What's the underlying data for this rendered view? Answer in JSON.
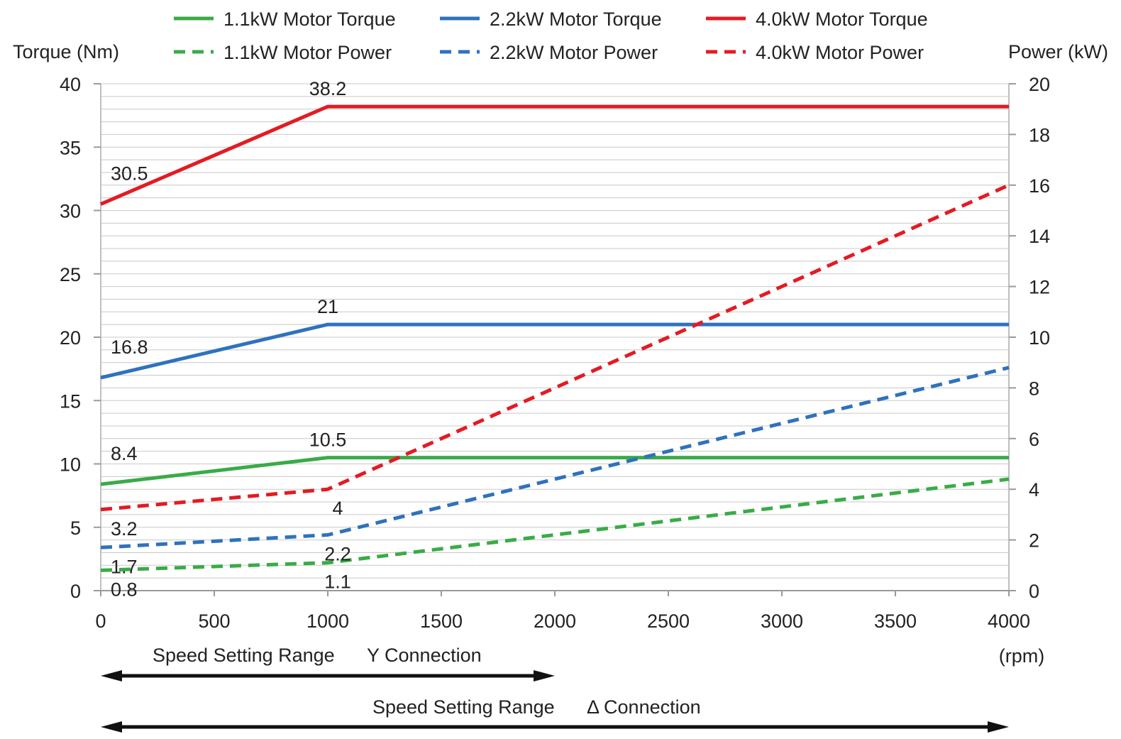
{
  "chart_data": {
    "type": "line",
    "x_unit": "(rpm)",
    "y_left_label": "Torque (Nm)",
    "y_right_label": "Power (kW)",
    "x_ticks": [
      0,
      500,
      1000,
      1500,
      2000,
      2500,
      3000,
      3500,
      4000
    ],
    "y_left_ticks": [
      0,
      5,
      10,
      15,
      20,
      25,
      30,
      35,
      40
    ],
    "y_right_ticks": [
      0,
      2,
      4,
      6,
      8,
      10,
      12,
      14,
      16,
      18,
      20
    ],
    "xlim": [
      0,
      4000
    ],
    "y_left_lim": [
      0,
      40
    ],
    "y_right_lim": [
      0,
      20
    ],
    "grid": "horizontal",
    "colors": {
      "green": "#3aab47",
      "blue": "#2f72bd",
      "red": "#e31b23"
    },
    "series": [
      {
        "name": "1.1kW Motor Torque",
        "axis": "left",
        "style": "solid",
        "color": "#3aab47",
        "x": [
          0,
          1000,
          4000
        ],
        "y": [
          8.4,
          10.5,
          10.5
        ]
      },
      {
        "name": "2.2kW Motor Torque",
        "axis": "left",
        "style": "solid",
        "color": "#2f72bd",
        "x": [
          0,
          1000,
          4000
        ],
        "y": [
          16.8,
          21,
          21
        ]
      },
      {
        "name": "4.0kW Motor Torque",
        "axis": "left",
        "style": "solid",
        "color": "#e31b23",
        "x": [
          0,
          1000,
          4000
        ],
        "y": [
          30.5,
          38.2,
          38.2
        ]
      },
      {
        "name": "1.1kW Motor Power",
        "axis": "right",
        "style": "dashed",
        "color": "#3aab47",
        "x": [
          0,
          1000,
          4000
        ],
        "y": [
          0.8,
          1.1,
          4.4
        ]
      },
      {
        "name": "2.2kW Motor Power",
        "axis": "right",
        "style": "dashed",
        "color": "#2f72bd",
        "x": [
          0,
          1000,
          4000
        ],
        "y": [
          1.7,
          2.2,
          8.8
        ]
      },
      {
        "name": "4.0kW Motor Power",
        "axis": "right",
        "style": "dashed",
        "color": "#e31b23",
        "x": [
          0,
          1000,
          4000
        ],
        "y": [
          3.2,
          4,
          16
        ]
      }
    ],
    "data_labels": [
      {
        "text": "30.5",
        "x": 0,
        "y": 30.5,
        "axis": "left",
        "pos": "above-right"
      },
      {
        "text": "38.2",
        "x": 1000,
        "y": 38.2,
        "axis": "left",
        "pos": "above"
      },
      {
        "text": "16.8",
        "x": 0,
        "y": 16.8,
        "axis": "left",
        "pos": "above-right"
      },
      {
        "text": "21",
        "x": 1000,
        "y": 21,
        "axis": "left",
        "pos": "above"
      },
      {
        "text": "8.4",
        "x": 0,
        "y": 8.4,
        "axis": "left",
        "pos": "above-right"
      },
      {
        "text": "10.5",
        "x": 1000,
        "y": 10.5,
        "axis": "left",
        "pos": "above"
      },
      {
        "text": "3.2",
        "x": 0,
        "y": 3.2,
        "axis": "right",
        "pos": "below-right"
      },
      {
        "text": "4",
        "x": 1000,
        "y": 4,
        "axis": "right",
        "pos": "below"
      },
      {
        "text": "1.7",
        "x": 0,
        "y": 1.7,
        "axis": "right",
        "pos": "below-right"
      },
      {
        "text": "2.2",
        "x": 1000,
        "y": 2.2,
        "axis": "right",
        "pos": "below"
      },
      {
        "text": "0.8",
        "x": 0,
        "y": 0.8,
        "axis": "right",
        "pos": "below-right"
      },
      {
        "text": "1.1",
        "x": 1000,
        "y": 1.1,
        "axis": "right",
        "pos": "below"
      }
    ],
    "ranges": [
      {
        "label": "Speed Setting Range",
        "connection": "Y Connection",
        "from": 0,
        "to": 2000
      },
      {
        "label": "Speed Setting Range",
        "connection": "Δ Connection",
        "from": 0,
        "to": 4000
      }
    ]
  }
}
